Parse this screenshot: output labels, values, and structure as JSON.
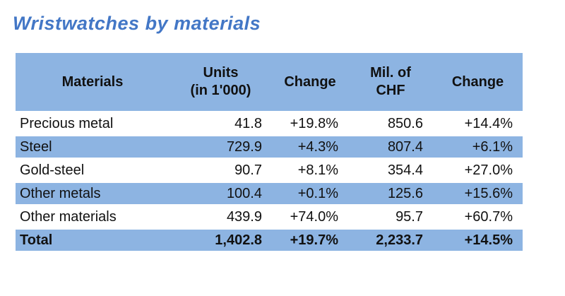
{
  "title": "Wristwatches by materials",
  "colors": {
    "title_blue": "#4377c6",
    "band_blue": "#8db4e2",
    "background": "#ffffff",
    "text": "#111111"
  },
  "chart_data": {
    "type": "table",
    "title": "Wristwatches by materials",
    "headers": {
      "materials": "Materials",
      "units": "Units\n(in 1'000)",
      "units_change": "Change",
      "chf": "Mil. of\nCHF",
      "chf_change": "Change"
    },
    "rows": [
      {
        "material": "Precious metal",
        "units": "41.8",
        "units_change": "+19.8%",
        "chf": "850.6",
        "chf_change": "+14.4%"
      },
      {
        "material": "Steel",
        "units": "729.9",
        "units_change": "+4.3%",
        "chf": "807.4",
        "chf_change": "+6.1%"
      },
      {
        "material": "Gold-steel",
        "units": "90.7",
        "units_change": "+8.1%",
        "chf": "354.4",
        "chf_change": "+27.0%"
      },
      {
        "material": "Other metals",
        "units": "100.4",
        "units_change": "+0.1%",
        "chf": "125.6",
        "chf_change": "+15.6%"
      },
      {
        "material": "Other materials",
        "units": "439.9",
        "units_change": "+74.0%",
        "chf": "95.7",
        "chf_change": "+60.7%"
      }
    ],
    "total": {
      "material": "Total",
      "units": "1,402.8",
      "units_change": "+19.7%",
      "chf": "2,233.7",
      "chf_change": "+14.5%"
    }
  }
}
